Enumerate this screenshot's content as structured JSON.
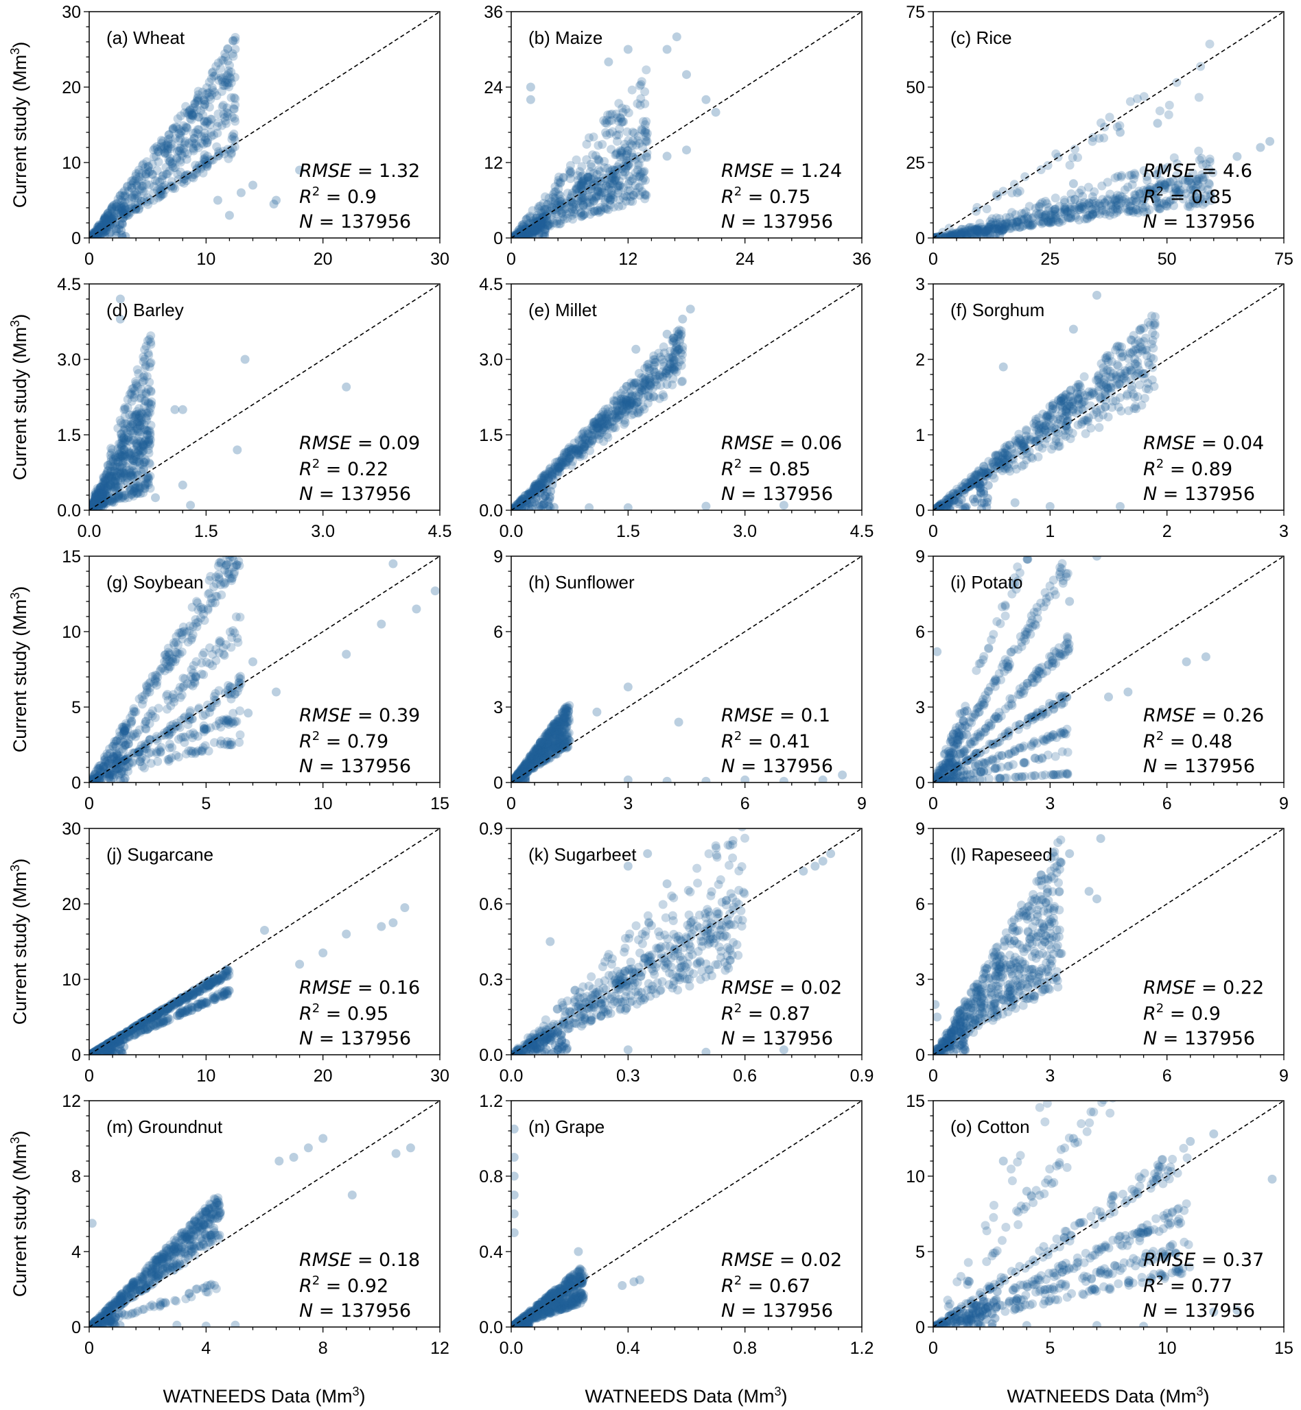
{
  "figure": {
    "ylabel": "Current study (Mm",
    "xlabel": "WATNEEDS Data (Mm",
    "unit_superscript": "3",
    "unit_close": ")",
    "rmse_symbol": "RMSE",
    "r2_symbol": "R",
    "n_symbol": "N",
    "equals": " = "
  },
  "chart_data": [
    {
      "type": "scatter",
      "label": "(a) Wheat",
      "crop": "Wheat",
      "range": [
        0,
        30
      ],
      "ticks": [
        0,
        10,
        20,
        30
      ],
      "tick_labels": [
        "0",
        "10",
        "20",
        "30"
      ],
      "rmse": "1.32",
      "r2": "0.9",
      "n": "137956",
      "point_color": "#1f5f99",
      "pattern": {
        "rays": [
          [
            1.9,
            0.9
          ],
          [
            1.4,
            0.6
          ],
          [
            1.0,
            0.5
          ]
        ],
        "spread": 0.12,
        "xmax": 12.5,
        "outliers": [
          [
            16,
            5
          ],
          [
            15.8,
            4.5
          ],
          [
            14,
            7
          ],
          [
            13,
            6
          ],
          [
            12,
            3
          ],
          [
            18,
            9
          ],
          [
            11,
            5
          ],
          [
            2,
            2.5
          ]
        ]
      }
    },
    {
      "type": "scatter",
      "label": "(b) Maize",
      "crop": "Maize",
      "range": [
        0,
        36
      ],
      "ticks": [
        0,
        12,
        24,
        36
      ],
      "tick_labels": [
        "0",
        "12",
        "24",
        "36"
      ],
      "rmse": "1.24",
      "r2": "0.75",
      "n": "137956",
      "point_color": "#1f5f99",
      "pattern": {
        "rays": [
          [
            1.0,
            0.9
          ],
          [
            1.6,
            0.5
          ],
          [
            0.6,
            0.5
          ]
        ],
        "spread": 0.25,
        "xmax": 14,
        "outliers": [
          [
            16,
            30
          ],
          [
            17,
            32
          ],
          [
            18,
            26
          ],
          [
            12,
            30
          ],
          [
            10,
            28
          ],
          [
            2,
            24
          ],
          [
            2,
            22
          ],
          [
            20,
            22
          ],
          [
            21,
            20
          ],
          [
            18,
            14
          ],
          [
            16,
            13
          ]
        ]
      }
    },
    {
      "type": "scatter",
      "label": "(c) Rice",
      "crop": "Rice",
      "range": [
        0,
        75
      ],
      "ticks": [
        0,
        25,
        50,
        75
      ],
      "tick_labels": [
        "0",
        "25",
        "50",
        "75"
      ],
      "rmse": "4.6",
      "r2": "0.85",
      "n": "137956",
      "point_color": "#1f5f99",
      "pattern": {
        "rays": [
          [
            0.32,
            0.9
          ],
          [
            0.22,
            0.6
          ],
          [
            0.45,
            0.3
          ],
          [
            0.95,
            0.15
          ]
        ],
        "spread": 0.15,
        "xmax": 60,
        "outliers": [
          [
            70,
            30
          ],
          [
            72,
            32
          ],
          [
            65,
            27
          ],
          [
            48,
            38
          ],
          [
            40,
            35
          ],
          [
            30,
            18
          ],
          [
            18,
            15
          ]
        ]
      }
    },
    {
      "type": "scatter",
      "label": "(d) Barley",
      "crop": "Barley",
      "range": [
        0,
        4.5
      ],
      "ticks": [
        0,
        1.5,
        3.0,
        4.5
      ],
      "tick_labels": [
        "0.0",
        "1.5",
        "3.0",
        "4.5"
      ],
      "rmse": "0.09",
      "r2": "0.22",
      "n": "137956",
      "point_color": "#1f5f99",
      "pattern": {
        "rays": [
          [
            3.5,
            0.5
          ],
          [
            2.5,
            0.6
          ],
          [
            1.5,
            0.4
          ],
          [
            0.7,
            0.3
          ]
        ],
        "spread": 0.3,
        "xmax": 0.8,
        "outliers": [
          [
            2.0,
            3.0
          ],
          [
            3.3,
            2.45
          ],
          [
            1.1,
            2.0
          ],
          [
            1.2,
            2.0
          ],
          [
            0.85,
            0.25
          ],
          [
            1.2,
            0.5
          ],
          [
            0.4,
            4.2
          ],
          [
            0.4,
            3.8
          ],
          [
            1.9,
            1.2
          ],
          [
            1.3,
            0.1
          ]
        ]
      }
    },
    {
      "type": "scatter",
      "label": "(e) Millet",
      "crop": "Millet",
      "range": [
        0,
        4.5
      ],
      "ticks": [
        0,
        1.5,
        3.0,
        4.5
      ],
      "tick_labels": [
        "0.0",
        "1.5",
        "3.0",
        "4.5"
      ],
      "rmse": "0.06",
      "r2": "0.85",
      "n": "137956",
      "point_color": "#1f5f99",
      "pattern": {
        "rays": [
          [
            1.5,
            1.0
          ],
          [
            1.3,
            0.3
          ]
        ],
        "spread": 0.12,
        "xmax": 2.2,
        "outliers": [
          [
            2.3,
            4.0
          ],
          [
            2.2,
            3.8
          ],
          [
            2.0,
            3.5
          ],
          [
            1.6,
            3.2
          ],
          [
            2.0,
            2.5
          ],
          [
            0.5,
            0.05
          ],
          [
            1.0,
            0.05
          ],
          [
            1.5,
            0.05
          ],
          [
            2.5,
            0.08
          ],
          [
            3.5,
            0.1
          ]
        ]
      }
    },
    {
      "type": "scatter",
      "label": "(f) Sorghum",
      "crop": "Sorghum",
      "range": [
        0,
        3
      ],
      "ticks": [
        0,
        1,
        2,
        3
      ],
      "tick_labels": [
        "0",
        "1",
        "2",
        "3"
      ],
      "rmse": "0.04",
      "r2": "0.89",
      "n": "137956",
      "point_color": "#1f5f99",
      "pattern": {
        "rays": [
          [
            1.2,
            1.0
          ],
          [
            0.9,
            0.3
          ]
        ],
        "spread": 0.15,
        "xmax": 1.9,
        "outliers": [
          [
            1.4,
            2.85
          ],
          [
            0.6,
            1.9
          ],
          [
            1.2,
            2.4
          ],
          [
            1.6,
            0.05
          ],
          [
            1.0,
            0.05
          ],
          [
            0.7,
            0.1
          ]
        ]
      }
    },
    {
      "type": "scatter",
      "label": "(g) Soybean",
      "crop": "Soybean",
      "range": [
        0,
        15
      ],
      "ticks": [
        0,
        5,
        10,
        15
      ],
      "tick_labels": [
        "0",
        "5",
        "10",
        "15"
      ],
      "rmse": "0.39",
      "r2": "0.79",
      "n": "137956",
      "point_color": "#1f5f99",
      "pattern": {
        "rays": [
          [
            2.4,
            0.8
          ],
          [
            1.6,
            0.4
          ],
          [
            1.0,
            0.5
          ],
          [
            0.7,
            0.3
          ],
          [
            0.45,
            0.2
          ]
        ],
        "spread": 0.1,
        "xmax": 6.5,
        "outliers": [
          [
            12.5,
            10.5
          ],
          [
            14,
            11.5
          ],
          [
            14.8,
            12.7
          ],
          [
            11,
            8.5
          ],
          [
            13,
            14.5
          ],
          [
            7,
            8
          ],
          [
            8,
            6
          ],
          [
            6.8,
            4.6
          ],
          [
            5,
            3.5
          ],
          [
            6,
            2.5
          ]
        ]
      }
    },
    {
      "type": "scatter",
      "label": "(h) Sunflower",
      "crop": "Sunflower",
      "range": [
        0,
        9
      ],
      "ticks": [
        0,
        3,
        6,
        9
      ],
      "tick_labels": [
        "0",
        "3",
        "6",
        "9"
      ],
      "rmse": "0.1",
      "r2": "0.41",
      "n": "137956",
      "point_color": "#1f5f99",
      "pattern": {
        "rays": [
          [
            1.8,
            0.9
          ],
          [
            1.2,
            0.5
          ]
        ],
        "spread": 0.2,
        "xmax": 1.5,
        "outliers": [
          [
            3,
            3.8
          ],
          [
            2.2,
            2.8
          ],
          [
            4.3,
            2.4
          ],
          [
            3,
            0.1
          ],
          [
            4,
            0.05
          ],
          [
            5,
            0.05
          ],
          [
            6,
            0.1
          ],
          [
            7,
            0.05
          ],
          [
            8,
            0.1
          ],
          [
            8.5,
            0.3
          ]
        ]
      }
    },
    {
      "type": "scatter",
      "label": "(i) Potato",
      "crop": "Potato",
      "range": [
        0,
        9
      ],
      "ticks": [
        0,
        3,
        6,
        9
      ],
      "tick_labels": [
        "0",
        "3",
        "6",
        "9"
      ],
      "rmse": "0.26",
      "r2": "0.48",
      "n": "137956",
      "point_color": "#1f5f99",
      "pattern": {
        "rays": [
          [
            3.8,
            0.3
          ],
          [
            2.5,
            0.5
          ],
          [
            1.6,
            0.5
          ],
          [
            1.0,
            0.4
          ],
          [
            0.6,
            0.3
          ],
          [
            0.35,
            0.2
          ],
          [
            0.1,
            0.2
          ]
        ],
        "spread": 0.06,
        "xmax": 3.5,
        "outliers": [
          [
            6.5,
            4.8
          ],
          [
            7,
            5
          ],
          [
            5,
            3.6
          ],
          [
            4.5,
            3.4
          ],
          [
            4.2,
            9
          ],
          [
            3.5,
            7.2
          ],
          [
            0.1,
            5.2
          ]
        ]
      }
    },
    {
      "type": "scatter",
      "label": "(j) Sugarcane",
      "crop": "Sugarcane",
      "range": [
        0,
        30
      ],
      "ticks": [
        0,
        10,
        20,
        30
      ],
      "tick_labels": [
        "0",
        "10",
        "20",
        "30"
      ],
      "rmse": "0.16",
      "r2": "0.95",
      "n": "137956",
      "point_color": "#1f5f99",
      "pattern": {
        "rays": [
          [
            0.92,
            0.7
          ],
          [
            0.7,
            0.3
          ]
        ],
        "spread": 0.05,
        "xmax": 12,
        "outliers": [
          [
            25,
            17
          ],
          [
            26,
            17.5
          ],
          [
            27,
            19.5
          ],
          [
            22,
            16
          ],
          [
            15,
            16.5
          ],
          [
            18,
            12
          ],
          [
            20,
            13.5
          ]
        ]
      }
    },
    {
      "type": "scatter",
      "label": "(k) Sugarbeet",
      "crop": "Sugarbeet",
      "range": [
        0,
        0.9
      ],
      "ticks": [
        0,
        0.3,
        0.6,
        0.9
      ],
      "tick_labels": [
        "0.0",
        "0.3",
        "0.6",
        "0.9"
      ],
      "rmse": "0.02",
      "r2": "0.87",
      "n": "137956",
      "point_color": "#1f5f99",
      "pattern": {
        "rays": [
          [
            1.0,
            0.6
          ],
          [
            0.7,
            0.3
          ],
          [
            1.4,
            0.2
          ]
        ],
        "spread": 0.15,
        "xmax": 0.6,
        "outliers": [
          [
            0.78,
            0.75
          ],
          [
            0.8,
            0.77
          ],
          [
            0.75,
            0.73
          ],
          [
            0.82,
            0.8
          ],
          [
            0.3,
            0.75
          ],
          [
            0.35,
            0.8
          ],
          [
            0.4,
            0.68
          ],
          [
            0.3,
            0.02
          ],
          [
            0.5,
            0.01
          ],
          [
            0.7,
            0.02
          ],
          [
            0.1,
            0.45
          ]
        ]
      }
    },
    {
      "type": "scatter",
      "label": "(l) Rapeseed",
      "crop": "Rapeseed",
      "range": [
        0,
        9
      ],
      "ticks": [
        0,
        3,
        6,
        9
      ],
      "tick_labels": [
        "0",
        "3",
        "6",
        "9"
      ],
      "rmse": "0.22",
      "r2": "0.9",
      "n": "137956",
      "point_color": "#1f5f99",
      "pattern": {
        "rays": [
          [
            2.2,
            0.7
          ],
          [
            1.5,
            0.5
          ],
          [
            1.05,
            0.3
          ]
        ],
        "spread": 0.2,
        "xmax": 3.3,
        "outliers": [
          [
            4.0,
            6.5
          ],
          [
            4.3,
            8.6
          ],
          [
            3.5,
            8.0
          ],
          [
            4.2,
            6.2
          ],
          [
            0.05,
            2.0
          ],
          [
            0.1,
            1.5
          ]
        ]
      }
    },
    {
      "type": "scatter",
      "label": "(m) Groundnut",
      "crop": "Groundnut",
      "range": [
        0,
        12
      ],
      "ticks": [
        0,
        4,
        8,
        12
      ],
      "tick_labels": [
        "0",
        "4",
        "8",
        "12"
      ],
      "rmse": "0.18",
      "r2": "0.92",
      "n": "137956",
      "point_color": "#1f5f99",
      "pattern": {
        "rays": [
          [
            1.45,
            0.8
          ],
          [
            1.15,
            0.4
          ],
          [
            0.5,
            0.1
          ]
        ],
        "spread": 0.1,
        "xmax": 4.5,
        "outliers": [
          [
            7,
            9
          ],
          [
            7.5,
            9.5
          ],
          [
            8,
            10
          ],
          [
            6.5,
            8.8
          ],
          [
            10.5,
            9.2
          ],
          [
            11,
            9.5
          ],
          [
            9,
            7
          ],
          [
            3,
            0.1
          ],
          [
            4,
            0.05
          ],
          [
            5,
            0.1
          ],
          [
            0.1,
            5.5
          ]
        ]
      }
    },
    {
      "type": "scatter",
      "label": "(n) Grape",
      "crop": "Grape",
      "range": [
        0,
        1.2
      ],
      "ticks": [
        0,
        0.4,
        0.8,
        1.2
      ],
      "tick_labels": [
        "0.0",
        "0.4",
        "0.8",
        "1.2"
      ],
      "rmse": "0.02",
      "r2": "0.67",
      "n": "137956",
      "point_color": "#1f5f99",
      "pattern": {
        "rays": [
          [
            1.1,
            0.6
          ],
          [
            0.65,
            0.4
          ]
        ],
        "spread": 0.2,
        "xmax": 0.25,
        "outliers": [
          [
            0.01,
            1.05
          ],
          [
            0.01,
            0.9
          ],
          [
            0.01,
            0.8
          ],
          [
            0.01,
            0.7
          ],
          [
            0.01,
            0.6
          ],
          [
            0.01,
            0.5
          ],
          [
            0.44,
            0.25
          ],
          [
            0.42,
            0.24
          ],
          [
            0.38,
            0.22
          ],
          [
            0.23,
            0.4
          ]
        ]
      }
    },
    {
      "type": "scatter",
      "label": "(o) Cotton",
      "crop": "Cotton",
      "range": [
        0,
        15
      ],
      "ticks": [
        0,
        5,
        10,
        15
      ],
      "tick_labels": [
        "0",
        "5",
        "10",
        "15"
      ],
      "rmse": "0.37",
      "r2": "0.77",
      "n": "137956",
      "point_color": "#1f5f99",
      "pattern": {
        "rays": [
          [
            1.05,
            0.3
          ],
          [
            0.7,
            0.35
          ],
          [
            0.5,
            0.3
          ],
          [
            0.35,
            0.2
          ],
          [
            2.0,
            0.2
          ],
          [
            3.0,
            0.1
          ]
        ],
        "spread": 0.08,
        "xmax": 11,
        "outliers": [
          [
            14.5,
            9.8
          ],
          [
            6,
            12.5
          ],
          [
            3,
            11
          ],
          [
            4,
            9
          ],
          [
            12,
            12.8
          ],
          [
            11,
            12.3
          ],
          [
            2,
            0.1
          ],
          [
            4,
            0.1
          ],
          [
            7,
            0.1
          ],
          [
            9,
            0.05
          ],
          [
            12,
            1
          ],
          [
            13,
            1.1
          ]
        ]
      }
    }
  ]
}
